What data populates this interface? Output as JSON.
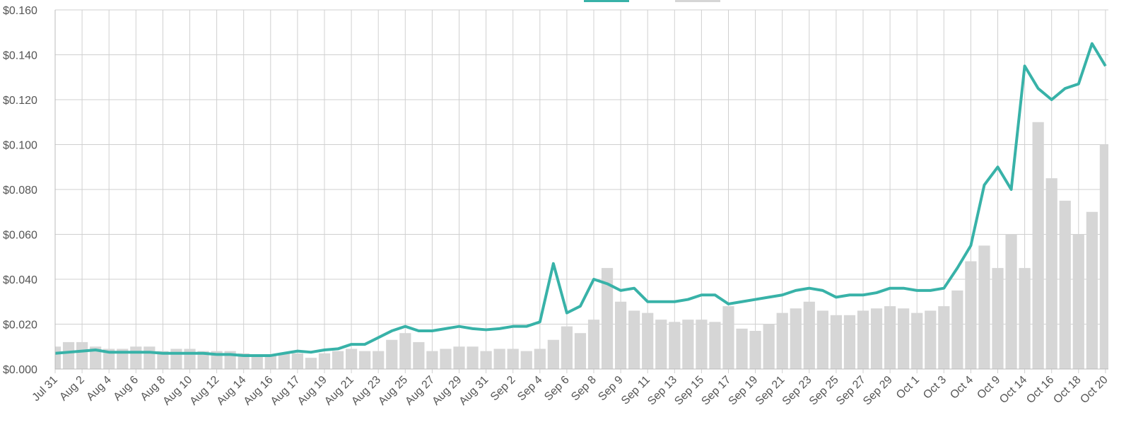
{
  "chart_data": {
    "type": "price-volume",
    "categories": [
      "Jul 31",
      null,
      "Aug 2",
      null,
      "Aug 4",
      null,
      "Aug 6",
      null,
      "Aug 8",
      null,
      "Aug 10",
      null,
      "Aug 12",
      null,
      "Aug 14",
      null,
      "Aug 16",
      null,
      "Aug 17",
      null,
      "Aug 19",
      null,
      "Aug 21",
      null,
      "Aug 23",
      null,
      "Aug 25",
      null,
      "Aug 27",
      null,
      "Aug 29",
      null,
      "Aug 31",
      null,
      "Sep 2",
      null,
      "Sep 4",
      null,
      "Sep 6",
      null,
      "Sep 8",
      null,
      "Sep 9",
      null,
      "Sep 11",
      null,
      "Sep 13",
      null,
      "Sep 15",
      null,
      "Sep 17",
      null,
      "Sep 19",
      null,
      "Sep 21",
      null,
      "Sep 23",
      null,
      "Sep 25",
      null,
      "Sep 27",
      null,
      "Sep 29",
      null,
      "Oct 1",
      null,
      "Oct 3",
      null,
      "Oct 4",
      null,
      "Oct 9",
      null,
      "Oct 14",
      null,
      "Oct 16",
      null,
      "Oct 18",
      null,
      "Oct 20"
    ],
    "series": [
      {
        "kind": "bar",
        "color": "#d6d6d6",
        "values": [
          0.01,
          0.012,
          0.012,
          0.01,
          0.009,
          0.009,
          0.01,
          0.01,
          0.008,
          0.009,
          0.009,
          0.008,
          0.008,
          0.008,
          0.007,
          0.006,
          0.006,
          0.007,
          0.007,
          0.005,
          0.007,
          0.008,
          0.009,
          0.008,
          0.008,
          0.013,
          0.016,
          0.012,
          0.008,
          0.009,
          0.01,
          0.01,
          0.008,
          0.009,
          0.009,
          0.008,
          0.009,
          0.013,
          0.019,
          0.016,
          0.022,
          0.045,
          0.03,
          0.026,
          0.025,
          0.022,
          0.021,
          0.022,
          0.022,
          0.021,
          0.028,
          0.018,
          0.017,
          0.02,
          0.025,
          0.027,
          0.03,
          0.026,
          0.024,
          0.024,
          0.026,
          0.027,
          0.028,
          0.027,
          0.025,
          0.026,
          0.028,
          0.035,
          0.048,
          0.055,
          0.045,
          0.06,
          0.045,
          0.11,
          0.085,
          0.075,
          0.06,
          0.07,
          0.1
        ]
      },
      {
        "kind": "line",
        "color": "#38b2a8",
        "values": [
          0.007,
          0.0075,
          0.008,
          0.0085,
          0.0075,
          0.0075,
          0.0075,
          0.0075,
          0.007,
          0.007,
          0.007,
          0.007,
          0.0065,
          0.0065,
          0.006,
          0.006,
          0.006,
          0.007,
          0.008,
          0.0075,
          0.0085,
          0.009,
          0.011,
          0.011,
          0.014,
          0.017,
          0.019,
          0.017,
          0.017,
          0.018,
          0.019,
          0.018,
          0.0175,
          0.018,
          0.019,
          0.019,
          0.021,
          0.047,
          0.025,
          0.028,
          0.04,
          0.038,
          0.035,
          0.036,
          0.03,
          0.03,
          0.03,
          0.031,
          0.033,
          0.033,
          0.029,
          0.03,
          0.031,
          0.032,
          0.033,
          0.035,
          0.036,
          0.035,
          0.032,
          0.033,
          0.033,
          0.034,
          0.036,
          0.036,
          0.035,
          0.035,
          0.036,
          0.045,
          0.055,
          0.082,
          0.09,
          0.08,
          0.135,
          0.125,
          0.12,
          0.125,
          0.127,
          0.145,
          0.135
        ]
      }
    ],
    "ylim": [
      0,
      0.16
    ],
    "yticks": [
      {
        "value": 0,
        "label": "$0.000"
      },
      {
        "value": 0.02,
        "label": "$0.020"
      },
      {
        "value": 0.04,
        "label": "$0.040"
      },
      {
        "value": 0.06,
        "label": "$0.060"
      },
      {
        "value": 0.08,
        "label": "$0.080"
      },
      {
        "value": 0.1,
        "label": "$0.100"
      },
      {
        "value": 0.12,
        "label": "$0.120"
      },
      {
        "value": 0.14,
        "label": "$0.140"
      },
      {
        "value": 0.16,
        "label": "$0.160"
      }
    ],
    "grid": true
  }
}
